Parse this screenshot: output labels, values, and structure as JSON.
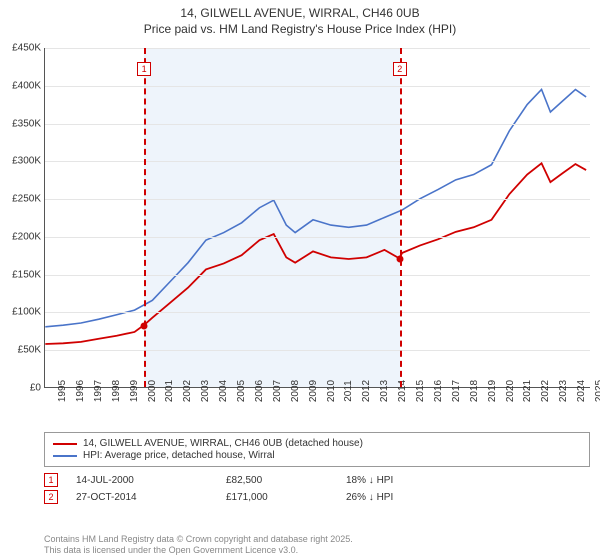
{
  "title": {
    "line1": "14, GILWELL AVENUE, WIRRAL, CH46 0UB",
    "line2": "Price paid vs. HM Land Registry's House Price Index (HPI)",
    "fontsize": 12
  },
  "chart": {
    "type": "line",
    "background_color": "#ffffff",
    "grid_color": "#e5e5e5",
    "axis_color": "#555555",
    "shade_color": "#eef4fb",
    "x_years": [
      1995,
      1996,
      1997,
      1998,
      1999,
      2000,
      2001,
      2002,
      2003,
      2004,
      2005,
      2006,
      2007,
      2008,
      2009,
      2010,
      2011,
      2012,
      2013,
      2014,
      2015,
      2016,
      2017,
      2018,
      2019,
      2020,
      2021,
      2022,
      2023,
      2024,
      2025
    ],
    "xlim": [
      1995,
      2025.5
    ],
    "ylim": [
      0,
      450000
    ],
    "ytick_step": 50000,
    "y_labels": [
      "£0",
      "£50K",
      "£100K",
      "£150K",
      "£200K",
      "£250K",
      "£300K",
      "£350K",
      "£400K",
      "£450K"
    ],
    "shade_ranges": [
      [
        2000.54,
        2014.82
      ]
    ],
    "series": [
      {
        "name": "HPI: Average price, detached house, Wirral",
        "color": "#4a74c9",
        "width": 1.6,
        "points": [
          [
            1995,
            80000
          ],
          [
            1996,
            82000
          ],
          [
            1997,
            85000
          ],
          [
            1998,
            90000
          ],
          [
            1999,
            96000
          ],
          [
            2000,
            102000
          ],
          [
            2001,
            115000
          ],
          [
            2002,
            140000
          ],
          [
            2003,
            165000
          ],
          [
            2004,
            195000
          ],
          [
            2005,
            205000
          ],
          [
            2006,
            218000
          ],
          [
            2007,
            238000
          ],
          [
            2007.8,
            248000
          ],
          [
            2008.5,
            215000
          ],
          [
            2009,
            205000
          ],
          [
            2010,
            222000
          ],
          [
            2011,
            215000
          ],
          [
            2012,
            212000
          ],
          [
            2013,
            215000
          ],
          [
            2014,
            225000
          ],
          [
            2015,
            235000
          ],
          [
            2016,
            250000
          ],
          [
            2017,
            262000
          ],
          [
            2018,
            275000
          ],
          [
            2019,
            282000
          ],
          [
            2020,
            295000
          ],
          [
            2021,
            340000
          ],
          [
            2022,
            375000
          ],
          [
            2022.8,
            395000
          ],
          [
            2023.3,
            365000
          ],
          [
            2024,
            380000
          ],
          [
            2024.7,
            395000
          ],
          [
            2025.3,
            385000
          ]
        ]
      },
      {
        "name": "14, GILWELL AVENUE, WIRRAL, CH46 0UB (detached house)",
        "color": "#d00000",
        "width": 1.8,
        "points": [
          [
            1995,
            57000
          ],
          [
            1996,
            58000
          ],
          [
            1997,
            60000
          ],
          [
            1998,
            64000
          ],
          [
            1999,
            68000
          ],
          [
            2000,
            73000
          ],
          [
            2000.54,
            82500
          ],
          [
            2001,
            92000
          ],
          [
            2002,
            112000
          ],
          [
            2003,
            132000
          ],
          [
            2004,
            156000
          ],
          [
            2005,
            164000
          ],
          [
            2006,
            175000
          ],
          [
            2007,
            195000
          ],
          [
            2007.8,
            203000
          ],
          [
            2008.5,
            172000
          ],
          [
            2009,
            165000
          ],
          [
            2010,
            180000
          ],
          [
            2011,
            172000
          ],
          [
            2012,
            170000
          ],
          [
            2013,
            172000
          ],
          [
            2014,
            182000
          ],
          [
            2014.82,
            171000
          ],
          [
            2015,
            178000
          ],
          [
            2016,
            188000
          ],
          [
            2017,
            196000
          ],
          [
            2018,
            206000
          ],
          [
            2019,
            212000
          ],
          [
            2020,
            222000
          ],
          [
            2021,
            256000
          ],
          [
            2022,
            282000
          ],
          [
            2022.8,
            297000
          ],
          [
            2023.3,
            272000
          ],
          [
            2024,
            284000
          ],
          [
            2024.7,
            296000
          ],
          [
            2025.3,
            288000
          ]
        ]
      }
    ],
    "sale_markers": [
      {
        "n": "1",
        "x": 2000.54,
        "y": 82500,
        "color": "#d00000"
      },
      {
        "n": "2",
        "x": 2014.82,
        "y": 171000,
        "color": "#d00000"
      }
    ],
    "marker_dash_color": "#d00000"
  },
  "legend": {
    "rows": [
      {
        "color": "#d00000",
        "label": "14, GILWELL AVENUE, WIRRAL, CH46 0UB (detached house)"
      },
      {
        "color": "#4a74c9",
        "label": "HPI: Average price, detached house, Wirral"
      }
    ]
  },
  "sales_table": [
    {
      "n": "1",
      "date": "14-JUL-2000",
      "price": "£82,500",
      "diff": "18% ↓ HPI"
    },
    {
      "n": "2",
      "date": "27-OCT-2014",
      "price": "£171,000",
      "diff": "26% ↓ HPI"
    }
  ],
  "credit": {
    "line1": "Contains HM Land Registry data © Crown copyright and database right 2025.",
    "line2": "This data is licensed under the Open Government Licence v3.0."
  }
}
